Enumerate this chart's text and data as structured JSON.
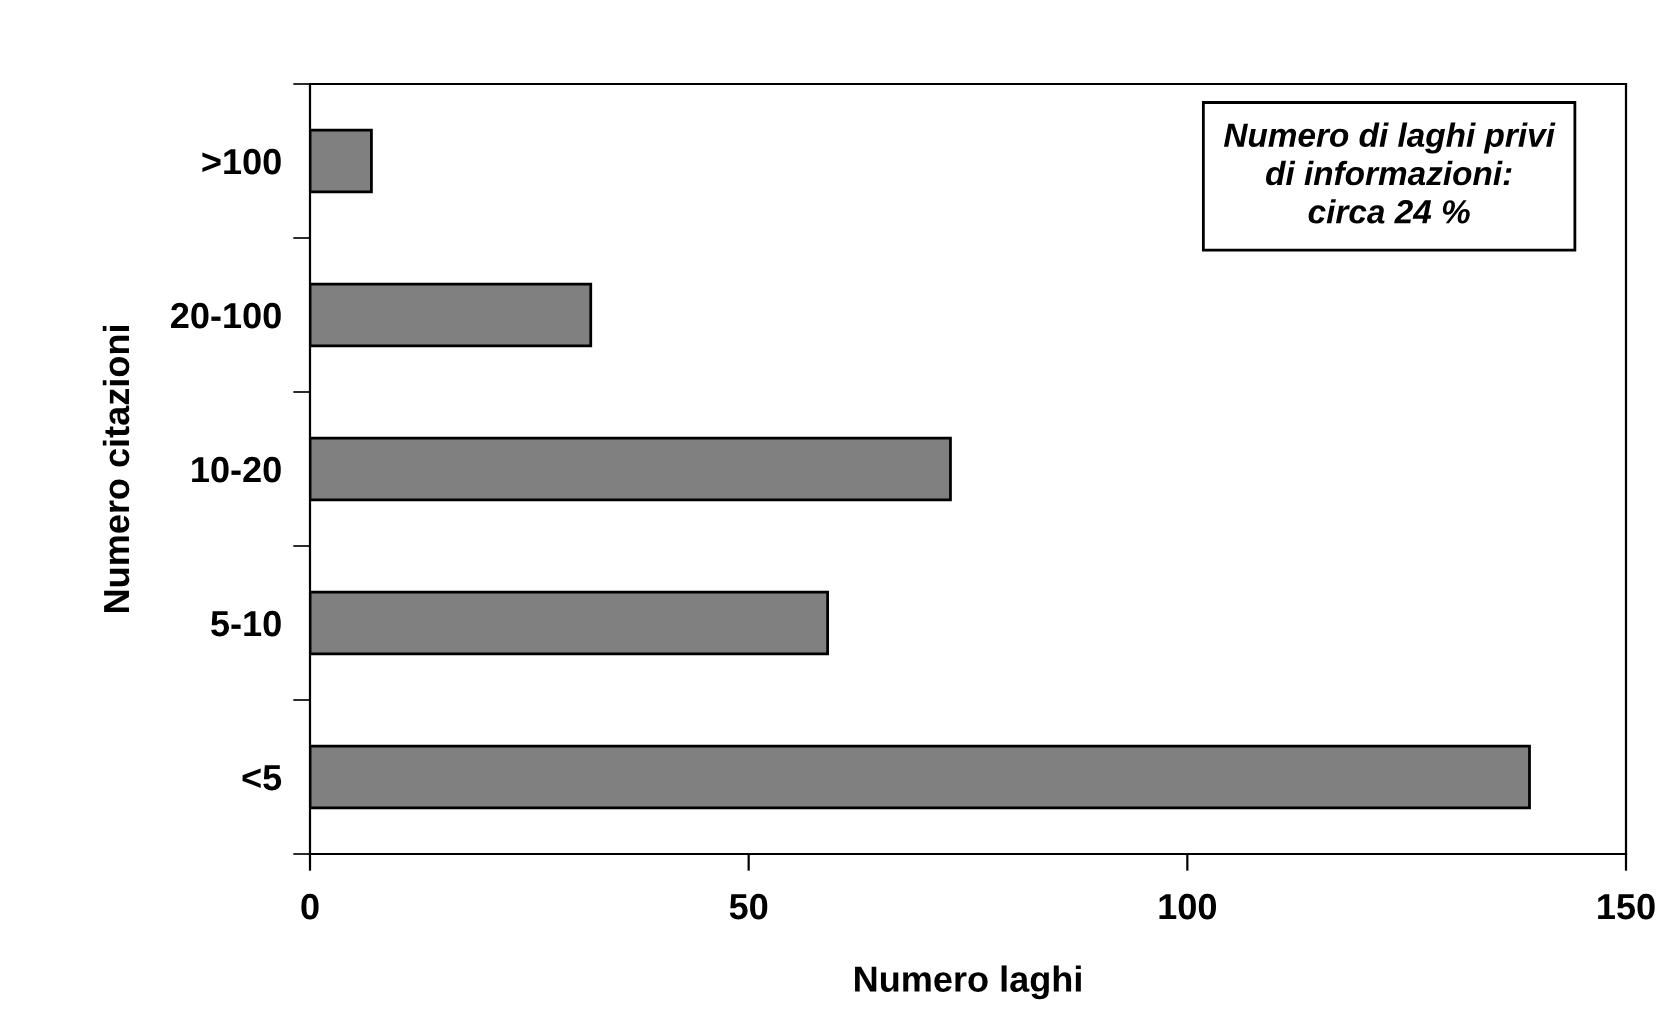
{
  "chart_data": {
    "type": "bar",
    "orientation": "horizontal",
    "xlabel": "Numero laghi",
    "ylabel": "Numero citazioni",
    "categories": [
      ">100",
      "20-100",
      "10-20",
      "5-10",
      "<5"
    ],
    "values": [
      7,
      32,
      73,
      59,
      139
    ],
    "color": "#808080",
    "xlim": [
      0,
      150
    ],
    "xticks": [
      0,
      50,
      100,
      150
    ],
    "grid": false,
    "legend": false,
    "annotations": [
      "Numero di laghi privi\ndi informazioni:\ncirca 24 %"
    ]
  }
}
